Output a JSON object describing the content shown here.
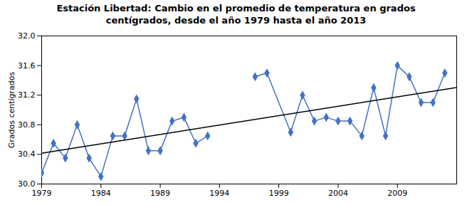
{
  "chart_data": {
    "type": "line",
    "title": "Estación Libertad: Cambio en el promedio de temperatura en grados\ncentígrados, desde el año 1979 hasta el año 2013",
    "ylabel": "Grados centígrados",
    "series": [
      {
        "color": "#4472C4",
        "marker": "diamond",
        "x": [
          1979,
          1980,
          1981,
          1982,
          1983,
          1984,
          1985,
          1986,
          1987,
          1988,
          1989,
          1990,
          1991,
          1992,
          1993
        ],
        "values": [
          30.15,
          30.55,
          30.35,
          30.8,
          30.35,
          30.1,
          30.65,
          30.65,
          31.15,
          30.45,
          30.45,
          30.85,
          30.9,
          30.55,
          30.65
        ]
      },
      {
        "color": "#4472C4",
        "marker": "diamond",
        "x": [
          1997,
          1998,
          2000,
          2001,
          2002,
          2003,
          2004,
          2005,
          2006,
          2007,
          2008,
          2009,
          2010,
          2011,
          2012,
          2013
        ],
        "values": [
          31.45,
          31.5,
          30.7,
          31.2,
          30.85,
          30.9,
          30.85,
          30.85,
          30.65,
          31.3,
          30.65,
          31.6,
          31.45,
          31.1,
          31.1,
          31.5
        ]
      },
      {
        "color": "#000000",
        "x": [
          1979,
          2014
        ],
        "values": [
          30.4148,
          31.3041
        ]
      }
    ],
    "xlim": [
      1979,
      2014
    ],
    "xticks": [
      1979,
      1984,
      1989,
      1994,
      1999,
      2004,
      2009
    ],
    "ylim": [
      30.0,
      32.0
    ],
    "yticks": [
      {
        "value": 30.0,
        "label": "30.0"
      },
      30.4,
      30.8,
      31.2,
      31.6,
      {
        "value": 32.0,
        "label": "32.0"
      }
    ],
    "grid": false
  }
}
